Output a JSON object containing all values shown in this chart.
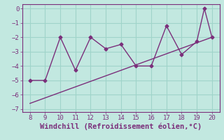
{
  "title": "",
  "xlabel": "Windchill (Refroidissement éolien,°C)",
  "x": [
    8,
    9,
    10,
    11,
    12,
    13,
    14,
    15,
    16,
    17,
    18,
    19,
    19.5,
    20
  ],
  "y": [
    -5,
    -5,
    -2,
    -4.3,
    -2,
    -2.8,
    -2.5,
    -4,
    -4,
    -1.2,
    -3.2,
    -2.3,
    0,
    -2
  ],
  "trend_x": [
    8,
    20
  ],
  "trend_y": [
    -6.6,
    -2.0
  ],
  "line_color": "#7b2f7b",
  "marker": "D",
  "marker_size": 2.5,
  "xlim": [
    7.5,
    20.5
  ],
  "ylim": [
    -7.2,
    0.3
  ],
  "xticks": [
    8,
    9,
    10,
    11,
    12,
    13,
    14,
    15,
    16,
    17,
    18,
    19,
    20
  ],
  "yticks": [
    0,
    -1,
    -2,
    -3,
    -4,
    -5,
    -6,
    -7
  ],
  "grid_color": "#9fd4ca",
  "bg_color": "#c2e8e0",
  "tick_fontsize": 6.5,
  "label_fontsize": 7.5
}
